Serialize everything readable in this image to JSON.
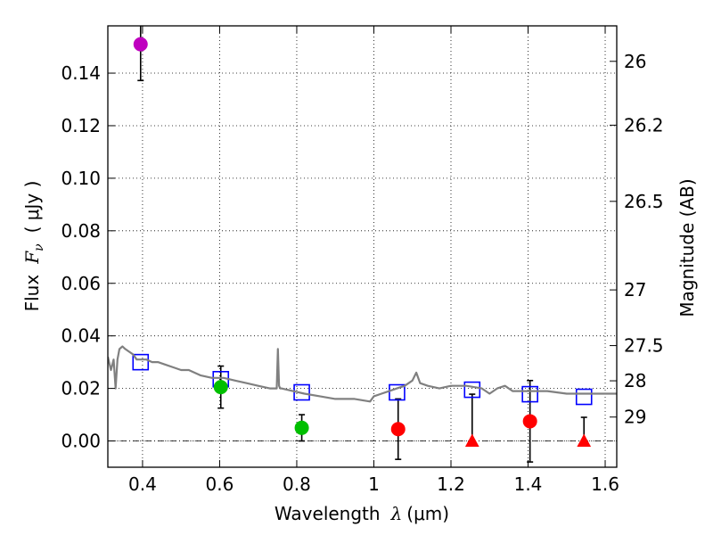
{
  "chart_data": {
    "type": "scatter",
    "title": "",
    "xlabel": {
      "prefix": "Wavelength",
      "symbol": "λ",
      "unit": "(μm)"
    },
    "ylabel": {
      "prefix": "Flux",
      "symbol": "F",
      "subscript": "ν",
      "unit": "( μJy )"
    },
    "y2label": "Magnitude (AB)",
    "xlim": [
      0.31,
      1.63
    ],
    "ylim": [
      -0.01,
      0.158
    ],
    "grid": true,
    "x_ticks": [
      {
        "value": 0.4,
        "label": "0.4"
      },
      {
        "value": 0.6,
        "label": "0.6"
      },
      {
        "value": 0.8,
        "label": "0.8"
      },
      {
        "value": 1.0,
        "label": "1"
      },
      {
        "value": 1.2,
        "label": "1.2"
      },
      {
        "value": 1.4,
        "label": "1.4"
      },
      {
        "value": 1.6,
        "label": "1.6"
      }
    ],
    "y_ticks": [
      {
        "value": 0.0,
        "label": "0.00"
      },
      {
        "value": 0.02,
        "label": "0.02"
      },
      {
        "value": 0.04,
        "label": "0.04"
      },
      {
        "value": 0.06,
        "label": "0.06"
      },
      {
        "value": 0.08,
        "label": "0.08"
      },
      {
        "value": 0.1,
        "label": "0.10"
      },
      {
        "value": 0.12,
        "label": "0.12"
      },
      {
        "value": 0.14,
        "label": "0.14"
      }
    ],
    "magnitude_ticks": [
      {
        "label": "26",
        "flux": 0.1445
      },
      {
        "label": "26.2",
        "flux": 0.1202
      },
      {
        "label": "26.5",
        "flux": 0.0912
      },
      {
        "label": "27",
        "flux": 0.0575
      },
      {
        "label": "27.5",
        "flux": 0.0363
      },
      {
        "label": "28",
        "flux": 0.0229
      },
      {
        "label": "29",
        "flux": 0.0091
      }
    ],
    "series": [
      {
        "name": "template-sed",
        "kind": "line",
        "color": "#808080",
        "x": [
          0.31,
          0.318,
          0.325,
          0.33,
          0.335,
          0.34,
          0.348,
          0.355,
          0.365,
          0.375,
          0.385,
          0.395,
          0.41,
          0.425,
          0.44,
          0.46,
          0.48,
          0.5,
          0.52,
          0.55,
          0.58,
          0.61,
          0.64,
          0.67,
          0.7,
          0.73,
          0.748,
          0.751,
          0.754,
          0.757,
          0.76,
          0.79,
          0.82,
          0.86,
          0.9,
          0.95,
          0.99,
          1.0,
          1.02,
          1.04,
          1.06,
          1.08,
          1.1,
          1.11,
          1.12,
          1.14,
          1.17,
          1.2,
          1.24,
          1.28,
          1.3,
          1.32,
          1.34,
          1.36,
          1.4,
          1.45,
          1.5,
          1.55,
          1.6,
          1.63
        ],
        "y": [
          0.032,
          0.027,
          0.031,
          0.02,
          0.031,
          0.035,
          0.036,
          0.035,
          0.034,
          0.033,
          0.031,
          0.031,
          0.031,
          0.03,
          0.03,
          0.029,
          0.028,
          0.027,
          0.027,
          0.025,
          0.024,
          0.024,
          0.023,
          0.022,
          0.021,
          0.02,
          0.02,
          0.035,
          0.021,
          0.02,
          0.02,
          0.019,
          0.018,
          0.017,
          0.016,
          0.016,
          0.015,
          0.017,
          0.018,
          0.019,
          0.02,
          0.021,
          0.023,
          0.026,
          0.022,
          0.021,
          0.02,
          0.021,
          0.021,
          0.02,
          0.018,
          0.02,
          0.021,
          0.019,
          0.019,
          0.019,
          0.018,
          0.018,
          0.018,
          0.018
        ]
      },
      {
        "name": "model-photometry",
        "kind": "marker",
        "marker": "square",
        "color": "#0000ff",
        "x": [
          0.395,
          0.603,
          0.813,
          1.06,
          1.255,
          1.405,
          1.545
        ],
        "y": [
          0.03,
          0.0235,
          0.0185,
          0.0185,
          0.0195,
          0.0178,
          0.0168
        ]
      },
      {
        "name": "u-band-detection",
        "kind": "marker",
        "marker": "circle",
        "color": "#bf00bf",
        "x": [
          0.395
        ],
        "y": [
          0.151
        ],
        "err": [
          0.0138
        ]
      },
      {
        "name": "optical-detections",
        "kind": "marker",
        "marker": "circle",
        "color": "#00bf00",
        "x": [
          0.603,
          0.813
        ],
        "y": [
          0.0205,
          0.005
        ],
        "err": [
          0.008,
          0.005
        ]
      },
      {
        "name": "nir-detections",
        "kind": "marker",
        "marker": "circle",
        "color": "#ff0000",
        "x": [
          1.063,
          1.405
        ],
        "y": [
          0.0045,
          0.0075
        ],
        "err": [
          0.0115,
          0.0155
        ]
      },
      {
        "name": "nir-upper-limits",
        "kind": "marker",
        "marker": "triangle",
        "color": "#ff0000",
        "x": [
          1.255,
          1.545
        ],
        "y": [
          0.0,
          0.0
        ],
        "err_up": [
          0.0178,
          0.009
        ]
      }
    ]
  }
}
